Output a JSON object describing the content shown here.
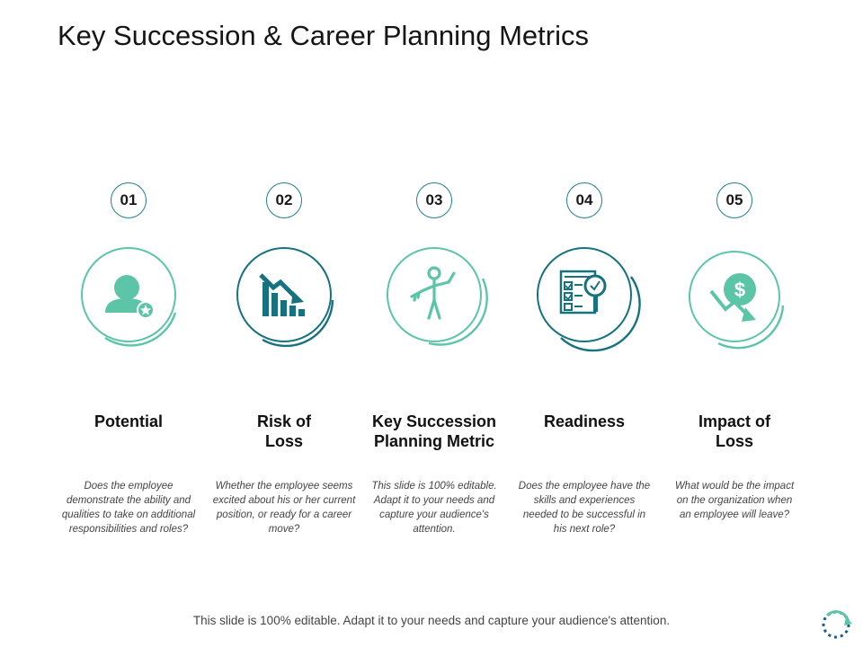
{
  "title": "Key Succession & Career Planning Metrics",
  "colors": {
    "teal_light": "#5cc5a8",
    "teal_dark": "#17727f",
    "text": "#111111"
  },
  "items": [
    {
      "number": "01",
      "icon": "person-star-icon",
      "heading": "Potential",
      "description": "Does the employee demonstrate the ability and qualities to take on additional responsibilities and roles?"
    },
    {
      "number": "02",
      "icon": "declining-chart-icon",
      "heading": "Risk of Loss",
      "description": "Whether the employee seems excited about his or her current position, or ready for a career move?"
    },
    {
      "number": "03",
      "icon": "person-holding-key-icon",
      "heading": "Key Succession Planning Metric",
      "description": "This slide is 100% editable. Adapt it to your needs and capture your audience's attention."
    },
    {
      "number": "04",
      "icon": "checklist-magnifier-icon",
      "heading": "Readiness",
      "description": "Does the employee have the skills and experiences needed to be successful in his next role?"
    },
    {
      "number": "05",
      "icon": "dollar-loss-icon",
      "heading": "Impact of Loss",
      "description": "What would be the impact on the organization when an employee will leave?"
    }
  ],
  "footer": "This slide is 100% editable. Adapt it to your needs and capture your audience's attention.",
  "corner_icon": "cycle-arrow-icon"
}
